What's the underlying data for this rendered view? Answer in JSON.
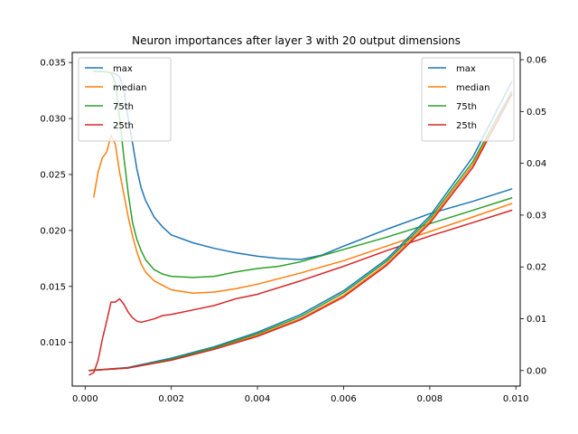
{
  "chart_data": {
    "type": "line",
    "title": "Neuron importances after layer 3 with 20 output dimensions",
    "xlim": [
      -0.0003,
      0.0101
    ],
    "x_ticks": [
      "0.000",
      "0.002",
      "0.004",
      "0.006",
      "0.008",
      "0.010"
    ],
    "left_axis": {
      "ylim": [
        0.0061,
        0.0359
      ],
      "ticks": [
        "0.010",
        "0.015",
        "0.020",
        "0.025",
        "0.030",
        "0.035"
      ],
      "legend_placement": "upper-left",
      "series": [
        {
          "name": "max",
          "color": "#1f77b4",
          "x": [
            0.0002,
            0.0004,
            0.0006,
            0.0007,
            0.0008,
            0.0009,
            0.001,
            0.0011,
            0.0012,
            0.0013,
            0.0014,
            0.0016,
            0.0018,
            0.002,
            0.0025,
            0.003,
            0.0035,
            0.004,
            0.0045,
            0.005,
            0.0055,
            0.006,
            0.007,
            0.008,
            0.009,
            0.0099
          ],
          "y": [
            0.0342,
            0.0342,
            0.0341,
            0.034,
            0.0337,
            0.0325,
            0.03,
            0.0278,
            0.0255,
            0.0238,
            0.0227,
            0.0212,
            0.0203,
            0.0196,
            0.0189,
            0.0184,
            0.018,
            0.0177,
            0.0175,
            0.0174,
            0.0178,
            0.0186,
            0.0201,
            0.0215,
            0.0226,
            0.0237
          ]
        },
        {
          "name": "median",
          "color": "#ff7f0e",
          "x": [
            0.0002,
            0.0003,
            0.0004,
            0.0005,
            0.0006,
            0.0007,
            0.0008,
            0.0009,
            0.001,
            0.0011,
            0.0012,
            0.0013,
            0.0014,
            0.0016,
            0.0018,
            0.002,
            0.0025,
            0.003,
            0.0035,
            0.004,
            0.005,
            0.006,
            0.007,
            0.008,
            0.009,
            0.0099
          ],
          "y": [
            0.023,
            0.0252,
            0.0265,
            0.027,
            0.0285,
            0.0277,
            0.0252,
            0.0232,
            0.0212,
            0.0195,
            0.0181,
            0.017,
            0.0163,
            0.0155,
            0.0151,
            0.0147,
            0.0144,
            0.0145,
            0.0148,
            0.0152,
            0.0162,
            0.0173,
            0.0186,
            0.0199,
            0.0212,
            0.0224
          ]
        },
        {
          "name": "75th",
          "color": "#2ca02c",
          "x": [
            0.0002,
            0.0004,
            0.0006,
            0.0007,
            0.0008,
            0.0009,
            0.001,
            0.0011,
            0.0012,
            0.0013,
            0.0014,
            0.0016,
            0.0018,
            0.002,
            0.0025,
            0.003,
            0.0035,
            0.004,
            0.0045,
            0.005,
            0.006,
            0.007,
            0.008,
            0.009,
            0.0099
          ],
          "y": [
            0.0342,
            0.0342,
            0.0341,
            0.0332,
            0.03,
            0.0265,
            0.0233,
            0.0207,
            0.0192,
            0.0182,
            0.0174,
            0.0165,
            0.0161,
            0.0159,
            0.0158,
            0.0159,
            0.0163,
            0.0166,
            0.0168,
            0.0172,
            0.0183,
            0.0194,
            0.0206,
            0.0218,
            0.0229
          ]
        },
        {
          "name": "25th",
          "color": "#d62728",
          "x": [
            0.0001,
            0.0002,
            0.0003,
            0.0004,
            0.0005,
            0.0006,
            0.0007,
            0.0008,
            0.0009,
            0.001,
            0.0011,
            0.0012,
            0.0013,
            0.0014,
            0.0016,
            0.0018,
            0.002,
            0.0025,
            0.003,
            0.0035,
            0.004,
            0.005,
            0.006,
            0.007,
            0.008,
            0.009,
            0.0099
          ],
          "y": [
            0.0071,
            0.0073,
            0.0084,
            0.0103,
            0.0119,
            0.0136,
            0.0136,
            0.0139,
            0.0134,
            0.0127,
            0.0122,
            0.0119,
            0.0118,
            0.0119,
            0.0121,
            0.0124,
            0.0125,
            0.0129,
            0.0133,
            0.0139,
            0.0143,
            0.0155,
            0.0168,
            0.0182,
            0.0195,
            0.0207,
            0.0218
          ]
        }
      ]
    },
    "right_axis": {
      "ylim": [
        -0.003,
        0.0614
      ],
      "ticks": [
        "0.00",
        "0.01",
        "0.02",
        "0.03",
        "0.04",
        "0.05",
        "0.06"
      ],
      "legend_placement": "upper-right",
      "series": [
        {
          "name": "max",
          "color": "#1f77b4",
          "x": [
            0.0001,
            0.001,
            0.002,
            0.003,
            0.004,
            0.005,
            0.006,
            0.007,
            0.008,
            0.009,
            0.0099
          ],
          "y": [
            0.0,
            0.0006,
            0.0024,
            0.0046,
            0.0074,
            0.0108,
            0.0154,
            0.0215,
            0.0298,
            0.0412,
            0.0557
          ]
        },
        {
          "name": "median",
          "color": "#ff7f0e",
          "x": [
            0.0001,
            0.001,
            0.002,
            0.003,
            0.004,
            0.005,
            0.006,
            0.007,
            0.008,
            0.009,
            0.0099
          ],
          "y": [
            0.0,
            0.0005,
            0.0021,
            0.0042,
            0.0068,
            0.01,
            0.0145,
            0.0206,
            0.0288,
            0.0397,
            0.0534
          ]
        },
        {
          "name": "75th",
          "color": "#2ca02c",
          "x": [
            0.0001,
            0.001,
            0.002,
            0.003,
            0.004,
            0.005,
            0.006,
            0.007,
            0.008,
            0.009,
            0.0099
          ],
          "y": [
            0.0,
            0.0005,
            0.0022,
            0.0044,
            0.0071,
            0.0104,
            0.015,
            0.0211,
            0.0293,
            0.0403,
            0.0538
          ]
        },
        {
          "name": "25th",
          "color": "#d62728",
          "x": [
            0.0001,
            0.001,
            0.002,
            0.003,
            0.004,
            0.005,
            0.006,
            0.007,
            0.008,
            0.009,
            0.0099
          ],
          "y": [
            0.0,
            0.0005,
            0.002,
            0.0041,
            0.0066,
            0.0098,
            0.0142,
            0.0203,
            0.0284,
            0.0392,
            0.0532
          ]
        }
      ]
    }
  }
}
